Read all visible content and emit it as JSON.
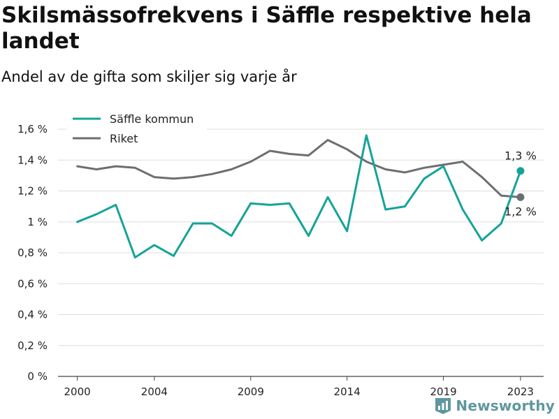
{
  "title": "Skilsmässofrekvens i Säffle respektive hela landet",
  "subtitle": "Andel av de gifta som skiljer sig varje år",
  "brand": "Newsworthy",
  "chart_data": {
    "type": "line",
    "x": [
      2000,
      2001,
      2002,
      2003,
      2004,
      2005,
      2006,
      2007,
      2008,
      2009,
      2010,
      2011,
      2012,
      2013,
      2014,
      2015,
      2016,
      2017,
      2018,
      2019,
      2020,
      2021,
      2022,
      2023
    ],
    "xticks": [
      2000,
      2004,
      2009,
      2014,
      2019,
      2023
    ],
    "xtick_labels": [
      "2000",
      "2004",
      "2009",
      "2014",
      "2019",
      "2023"
    ],
    "xlim": [
      1999,
      2024.2
    ],
    "ylim": [
      0,
      1.6
    ],
    "yticks": [
      0,
      0.2,
      0.4,
      0.6,
      0.8,
      1.0,
      1.2,
      1.4,
      1.6
    ],
    "ytick_labels": [
      "0 %",
      "0,2 %",
      "0,4 %",
      "0,6 %",
      "0,8 %",
      "1 %",
      "1,2 %",
      "1,4 %",
      "1,6 %"
    ],
    "grid": true,
    "legend": "top-left",
    "series": [
      {
        "name": "Säffle kommun",
        "color": "#16a398",
        "values": [
          1.0,
          1.05,
          1.11,
          0.77,
          0.85,
          0.78,
          0.99,
          0.99,
          0.91,
          1.12,
          1.11,
          1.12,
          0.91,
          1.16,
          0.94,
          1.56,
          1.08,
          1.1,
          1.28,
          1.36,
          1.08,
          0.88,
          0.99,
          1.33
        ],
        "end_label": "1,3 %"
      },
      {
        "name": "Riket",
        "color": "#6d6e71",
        "values": [
          1.36,
          1.34,
          1.36,
          1.35,
          1.29,
          1.28,
          1.29,
          1.31,
          1.34,
          1.39,
          1.46,
          1.44,
          1.43,
          1.53,
          1.47,
          1.39,
          1.34,
          1.32,
          1.35,
          1.37,
          1.39,
          1.29,
          1.17,
          1.16
        ],
        "end_label": "1,2 %"
      }
    ]
  }
}
